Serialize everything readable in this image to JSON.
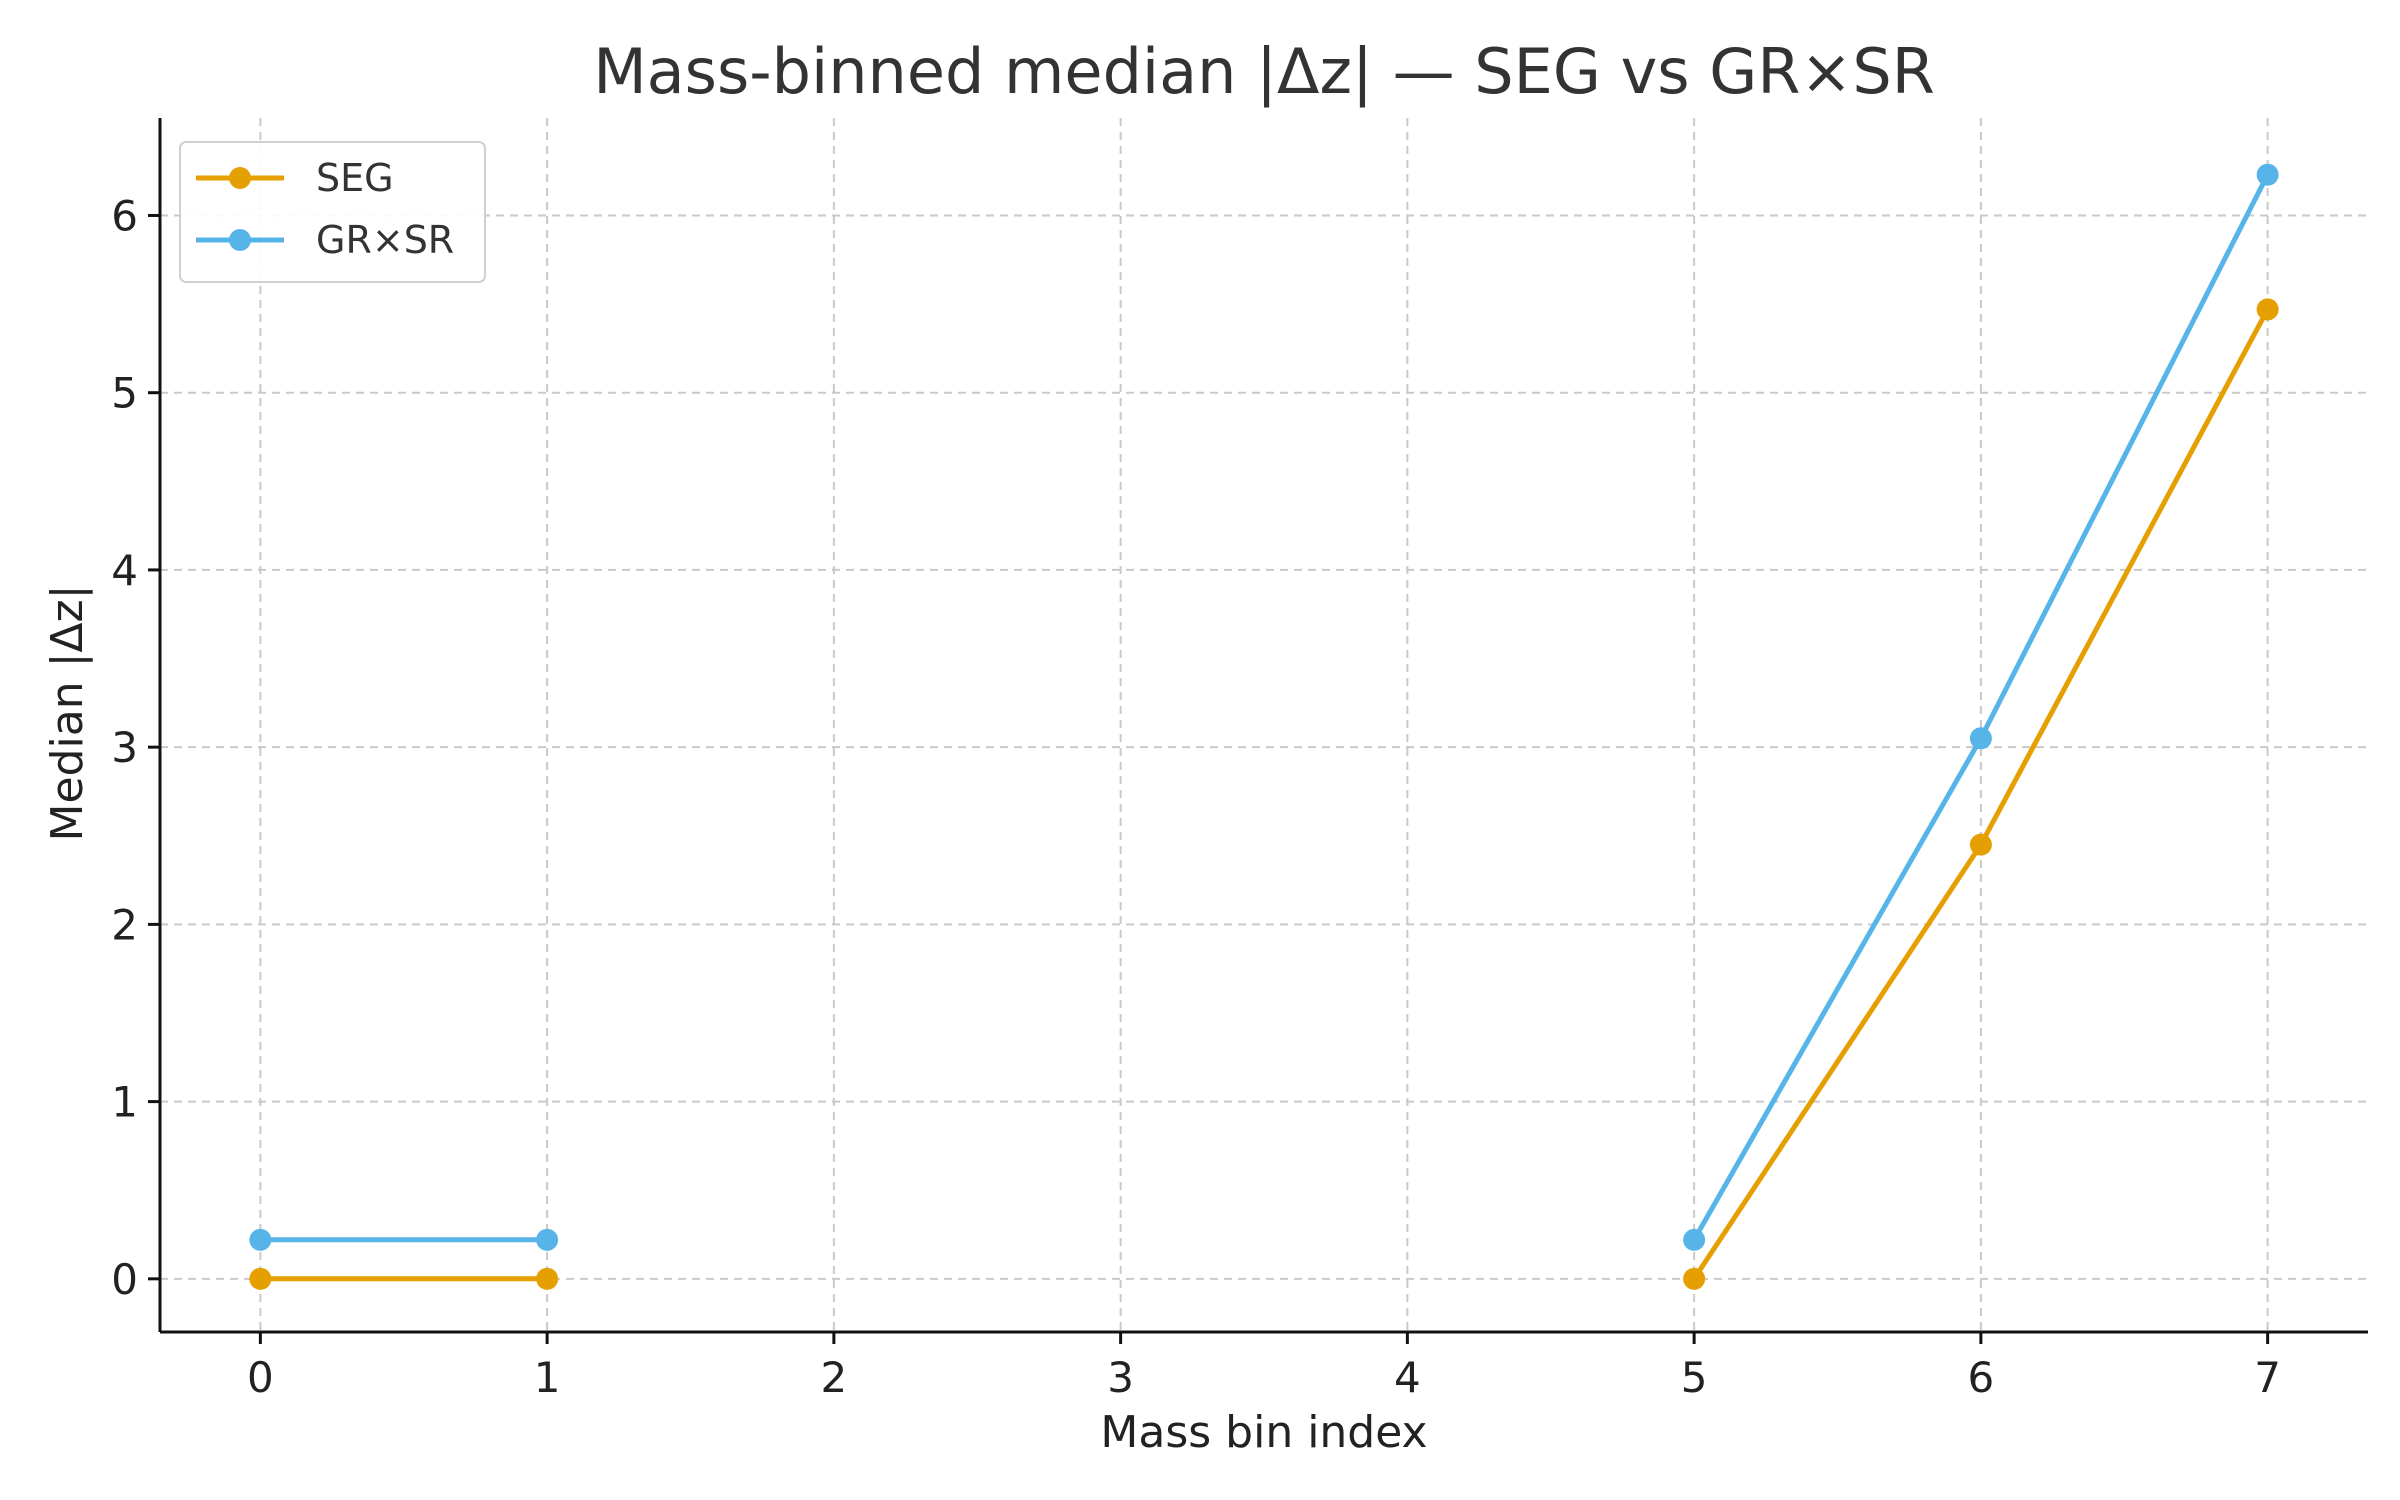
{
  "chart_data": {
    "type": "line",
    "title": "Mass-binned median |Δz| — SEG vs GR×SR",
    "xlabel": "Mass bin index",
    "ylabel": "Median |Δz|",
    "x_ticks": [
      0,
      1,
      2,
      3,
      4,
      5,
      6,
      7
    ],
    "y_ticks": [
      0,
      1,
      2,
      3,
      4,
      5,
      6
    ],
    "xlim": [
      -0.35,
      7.35
    ],
    "ylim": [
      -0.3,
      6.55
    ],
    "grid": true,
    "legend_position": "top-left",
    "x": [
      0,
      1,
      2,
      3,
      4,
      5,
      6,
      7
    ],
    "series": [
      {
        "name": "SEG",
        "color": "#E69F00",
        "values": [
          0.0,
          0.0,
          null,
          null,
          null,
          0.0,
          2.45,
          5.47
        ]
      },
      {
        "name": "GR×SR",
        "color": "#56B4E9",
        "values": [
          0.22,
          0.22,
          null,
          null,
          null,
          0.22,
          3.05,
          6.23
        ]
      }
    ]
  }
}
